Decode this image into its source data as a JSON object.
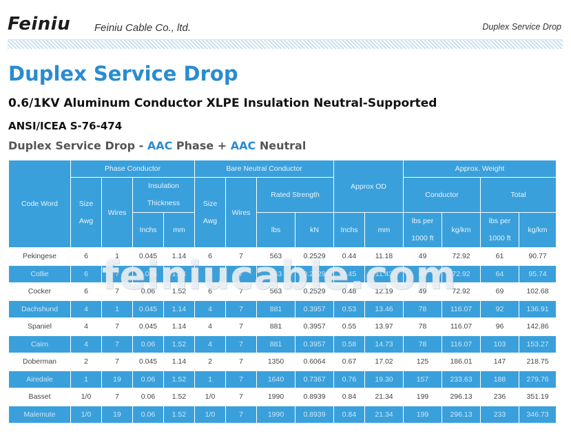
{
  "header": {
    "brand": "Feiniu",
    "company": "Feiniu Cable Co., ltd.",
    "right_label": "Duplex Service Drop"
  },
  "page_title": "Duplex Service Drop",
  "subtitle": "0.6/1KV Aluminum Conductor XLPE Insulation Neutral-Supported",
  "standard": "ANSI/ICEA S-76-474",
  "section_heading": {
    "prefix": "Duplex Service Drop - ",
    "phase_material": "AAC",
    "phase_word": " Phase + ",
    "neutral_material": "AAC",
    "neutral_word": " Neutral"
  },
  "table": {
    "headers": {
      "code_word": "Code Word",
      "phase_conductor": "Phase Conductor",
      "bare_neutral_conductor": "Bare Neutral Conductor",
      "approx_od": "Approx OD",
      "approx_weight": "Approx. Weight",
      "size_awg_1": "Size",
      "size_awg_2": "Awg",
      "wires": "Wires",
      "insulation_1": "Insulation",
      "insulation_2": "Thickness",
      "rated_strength": "Rated Strength",
      "conductor": "Conductor",
      "total": "Total",
      "inchs": "Inchs",
      "mm": "mm",
      "lbs": "lbs",
      "kn": "kN",
      "lbs_per_1": "lbs per",
      "lbs_per_2": "1000 ft",
      "kg_km": "kg/km"
    },
    "rows": [
      [
        "Pekingese",
        "6",
        "1",
        "0.045",
        "1.14",
        "6",
        "7",
        "563",
        "0.2529",
        "0.44",
        "11.18",
        "49",
        "72.92",
        "61",
        "90.77"
      ],
      [
        "Collie",
        "6",
        "7",
        "0.045",
        "1.14",
        "6",
        "7",
        "563",
        "0.2529",
        "0.45",
        "11.43",
        "49",
        "72.92",
        "64",
        "95.74"
      ],
      [
        "Cocker",
        "6",
        "7",
        "0.06",
        "1.52",
        "6",
        "7",
        "563",
        "0.2529",
        "0.48",
        "12.19",
        "49",
        "72.92",
        "69",
        "102.68"
      ],
      [
        "Dachshund",
        "4",
        "1",
        "0.045",
        "1.14",
        "4",
        "7",
        "881",
        "0.3957",
        "0.53",
        "13.46",
        "78",
        "116.07",
        "92",
        "136.91"
      ],
      [
        "Spaniel",
        "4",
        "7",
        "0.045",
        "1.14",
        "4",
        "7",
        "881",
        "0.3957",
        "0.55",
        "13.97",
        "78",
        "116.07",
        "96",
        "142.86"
      ],
      [
        "Cairn",
        "4",
        "7",
        "0.06",
        "1.52",
        "4",
        "7",
        "881",
        "0.3957",
        "0.58",
        "14.73",
        "78",
        "116.07",
        "103",
        "153.27"
      ],
      [
        "Doberman",
        "2",
        "7",
        "0.045",
        "1.14",
        "2",
        "7",
        "1350",
        "0.6064",
        "0.67",
        "17.02",
        "125",
        "186.01",
        "147",
        "218.75"
      ],
      [
        "Airedale",
        "1",
        "19",
        "0.06",
        "1.52",
        "1",
        "7",
        "1640",
        "0.7367",
        "0.76",
        "19.30",
        "157",
        "233.63",
        "188",
        "279.76"
      ],
      [
        "Basset",
        "1/0",
        "7",
        "0.06",
        "1.52",
        "1/0",
        "7",
        "1990",
        "0.8939",
        "0.84",
        "21.34",
        "199",
        "296.13",
        "236",
        "351.19"
      ],
      [
        "Malemute",
        "1/0",
        "19",
        "0.06",
        "1.52",
        "1/0",
        "7",
        "1990",
        "0.8939",
        "0.84",
        "21.34",
        "199",
        "296.13",
        "233",
        "346.73"
      ]
    ]
  },
  "watermark": "feiniucable.com",
  "colors": {
    "accent_blue": "#2a8ccf",
    "table_header_blue": "#3aa0db"
  }
}
